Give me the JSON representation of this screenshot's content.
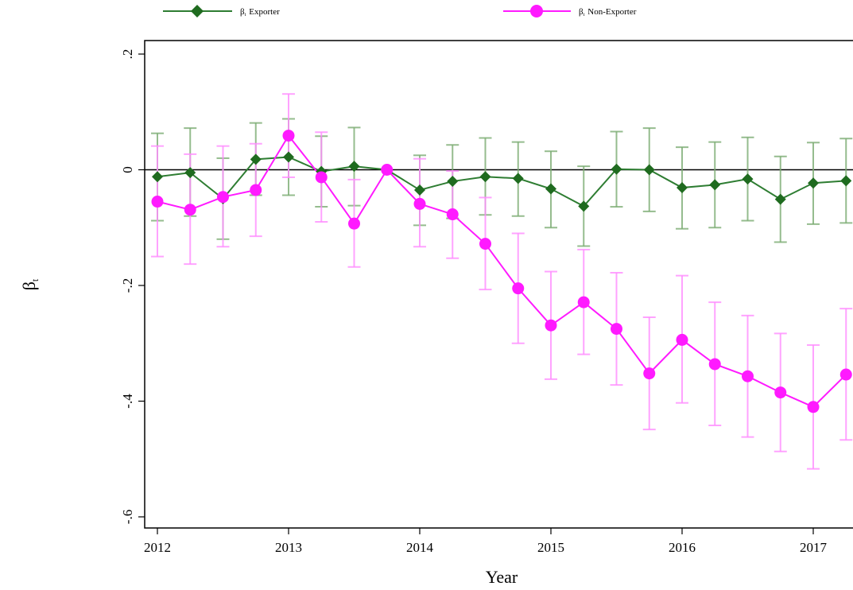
{
  "chart_data": {
    "type": "line",
    "xlabel": "Year",
    "ylabel": "β",
    "ylabel_sub": "t",
    "xlim": [
      2012,
      2017.3
    ],
    "ylim": [
      -0.62,
      0.24
    ],
    "x_ticks": [
      2012,
      2013,
      2014,
      2015,
      2016,
      2017
    ],
    "x_tick_labels": [
      "2012",
      "2013",
      "2014",
      "2015",
      "2016",
      "2017"
    ],
    "y_ticks": [
      0.2,
      0,
      -0.2,
      -0.4,
      -0.6
    ],
    "y_tick_labels": [
      ".2",
      "0",
      "-.2",
      "-.4",
      "-.6"
    ],
    "reference_line_y": 0,
    "grid": false,
    "legend_position": "top",
    "x": [
      2012,
      2012.25,
      2012.5,
      2012.75,
      2013,
      2013.25,
      2013.5,
      2013.75,
      2014,
      2014.25,
      2014.5,
      2014.75,
      2015,
      2015.25,
      2015.5,
      2015.75,
      2016,
      2016.25,
      2016.5,
      2016.75,
      2017,
      2017.25
    ],
    "series": [
      {
        "name": "Exporter",
        "legend_symbol": "β",
        "legend_sub": "t",
        "color": "#2e7d32",
        "ci_color": "#7aab72",
        "marker": "diamond",
        "values": [
          -0.012,
          -0.005,
          -0.05,
          0.018,
          0.022,
          -0.003,
          0.006,
          0.0,
          -0.035,
          -0.02,
          -0.012,
          -0.015,
          -0.033,
          -0.063,
          0.001,
          0.0,
          -0.031,
          -0.026,
          -0.016,
          -0.051,
          -0.023,
          -0.019
        ],
        "ci_low": [
          -0.088,
          -0.08,
          -0.12,
          -0.044,
          -0.044,
          -0.064,
          -0.062,
          0.0,
          -0.096,
          -0.084,
          -0.078,
          -0.08,
          -0.1,
          -0.132,
          -0.064,
          -0.072,
          -0.102,
          -0.1,
          -0.088,
          -0.125,
          -0.094,
          -0.092
        ],
        "ci_high": [
          0.063,
          0.072,
          0.02,
          0.081,
          0.088,
          0.058,
          0.073,
          0.0,
          0.025,
          0.043,
          0.055,
          0.048,
          0.032,
          0.006,
          0.066,
          0.072,
          0.039,
          0.048,
          0.056,
          0.023,
          0.047,
          0.054
        ]
      },
      {
        "name": "Non-Exporter",
        "legend_symbol": "β",
        "legend_sub": "t",
        "color": "#ff1aff",
        "ci_color": "#ff8cff",
        "marker": "circle",
        "values": [
          -0.055,
          -0.069,
          -0.047,
          -0.035,
          0.059,
          -0.013,
          -0.093,
          0.0,
          -0.059,
          -0.077,
          -0.128,
          -0.205,
          -0.269,
          -0.229,
          -0.275,
          -0.352,
          -0.294,
          -0.336,
          -0.357,
          -0.385,
          -0.41,
          -0.354
        ],
        "ci_low": [
          -0.15,
          -0.163,
          -0.133,
          -0.115,
          -0.013,
          -0.09,
          -0.168,
          0.0,
          -0.133,
          -0.153,
          -0.207,
          -0.3,
          -0.362,
          -0.319,
          -0.372,
          -0.449,
          -0.403,
          -0.442,
          -0.462,
          -0.487,
          -0.517,
          -0.467
        ],
        "ci_high": [
          0.041,
          0.027,
          0.041,
          0.045,
          0.131,
          0.065,
          -0.017,
          0.0,
          0.019,
          -0.002,
          -0.048,
          -0.11,
          -0.176,
          -0.138,
          -0.178,
          -0.255,
          -0.183,
          -0.229,
          -0.252,
          -0.283,
          -0.303,
          -0.24
        ]
      }
    ]
  }
}
